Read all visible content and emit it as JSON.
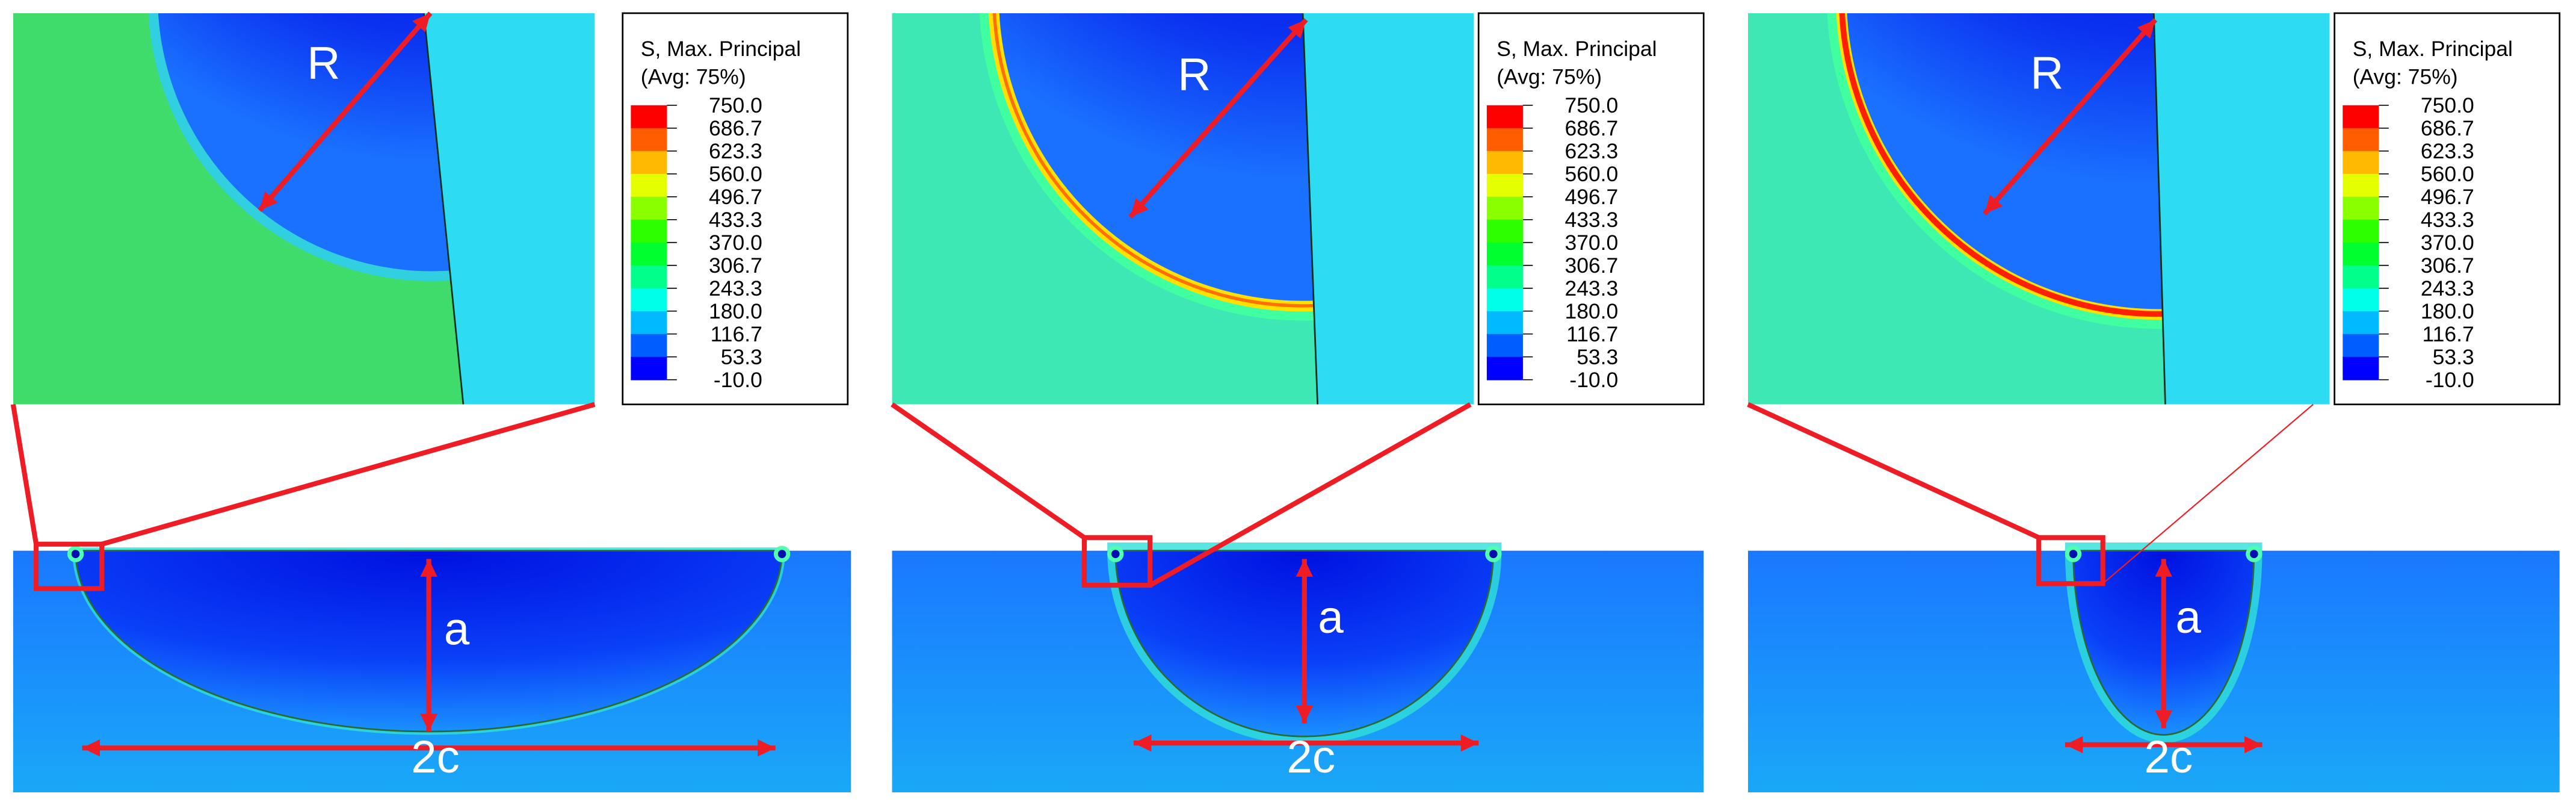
{
  "panels": [
    {
      "legend": {
        "title": "S, Max. Principal",
        "subtitle": "(Avg: 75%)",
        "labels": [
          "750.0",
          "686.7",
          "623.3",
          "560.0",
          "496.7",
          "433.3",
          "370.0",
          "306.7",
          "243.3",
          "180.0",
          "116.7",
          "53.3",
          "-10.0"
        ]
      },
      "zoom_label": "R",
      "depth_label": "a",
      "width_label": "2c"
    },
    {
      "legend": {
        "title": "S, Max. Principal",
        "subtitle": "(Avg: 75%)",
        "labels": [
          "750.0",
          "686.7",
          "623.3",
          "560.0",
          "496.7",
          "433.3",
          "370.0",
          "306.7",
          "243.3",
          "180.0",
          "116.7",
          "53.3",
          "-10.0"
        ]
      },
      "zoom_label": "R",
      "depth_label": "a",
      "width_label": "2c"
    },
    {
      "legend": {
        "title": "S, Max. Principal",
        "subtitle": "(Avg: 75%)",
        "labels": [
          "750.0",
          "686.7",
          "623.3",
          "560.0",
          "496.7",
          "433.3",
          "370.0",
          "306.7",
          "243.3",
          "180.0",
          "116.7",
          "53.3",
          "-10.0"
        ]
      },
      "zoom_label": "R",
      "depth_label": "a",
      "width_label": "2c"
    }
  ]
}
